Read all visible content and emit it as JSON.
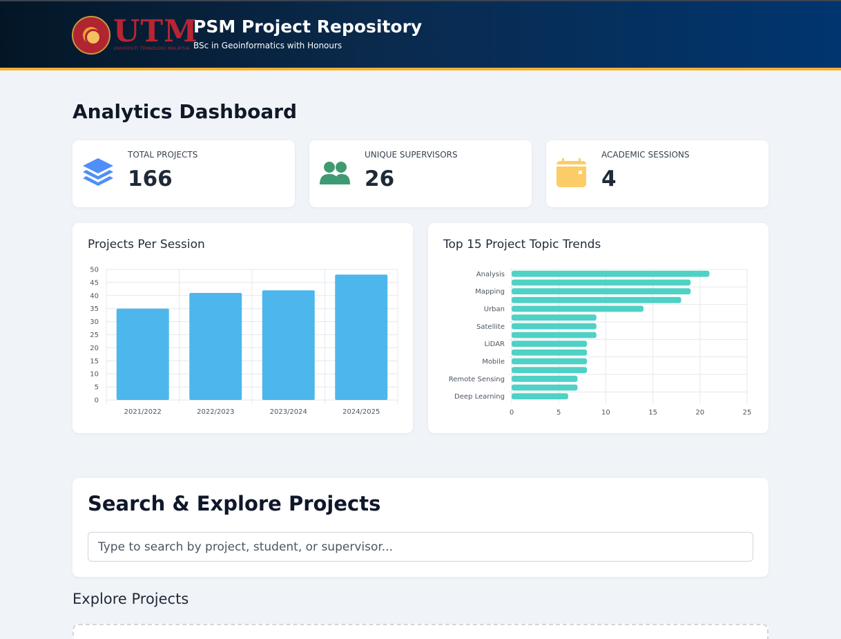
{
  "colors": {
    "header_bg": "#0a2a4d",
    "header_accent": "#f2b230",
    "bar_blue": "#4db6ec",
    "bar_teal": "#4fd1c5",
    "icon_blue": "#4f8ff7",
    "icon_green": "#3f9a73",
    "icon_yellow": "#fccc68"
  },
  "header": {
    "logo_text": "UTM",
    "logo_subtext": "UNIVERSITI TEKNOLOGI MALAYSIA",
    "title": "PSM Project Repository",
    "subtitle": "BSc in Geoinformatics with Honours"
  },
  "dashboard": {
    "title": "Analytics Dashboard",
    "stats": [
      {
        "label": "TOTAL PROJECTS",
        "value": "166",
        "icon": "layers-icon"
      },
      {
        "label": "UNIQUE SUPERVISORS",
        "value": "26",
        "icon": "users-icon"
      },
      {
        "label": "ACADEMIC SESSIONS",
        "value": "4",
        "icon": "calendar-icon"
      }
    ]
  },
  "chart_data": [
    {
      "type": "bar",
      "title": "Projects Per Session",
      "categories": [
        "2021/2022",
        "2022/2023",
        "2023/2024",
        "2024/2025"
      ],
      "values": [
        35,
        41,
        42,
        48
      ],
      "ylim": [
        0,
        50
      ],
      "yticks": [
        0,
        5,
        10,
        15,
        20,
        25,
        30,
        35,
        40,
        45,
        50
      ],
      "grid": true
    },
    {
      "type": "bar",
      "orientation": "horizontal",
      "title": "Top 15 Project Topic Trends",
      "values": [
        21,
        19,
        19,
        18,
        14,
        9,
        9,
        9,
        8,
        8,
        8,
        8,
        7,
        7,
        6
      ],
      "tick_labels": [
        "Analysis",
        "Mapping",
        "Urban",
        "Satellite",
        "LiDAR",
        "Mobile",
        "Remote Sensing",
        "Deep Learning"
      ],
      "xlim": [
        0,
        25
      ],
      "xticks": [
        0,
        5,
        10,
        15,
        20,
        25
      ],
      "grid": true
    }
  ],
  "search": {
    "title": "Search & Explore Projects",
    "placeholder": "Type to search by project, student, or supervisor..."
  },
  "explore": {
    "title": "Explore Projects"
  }
}
